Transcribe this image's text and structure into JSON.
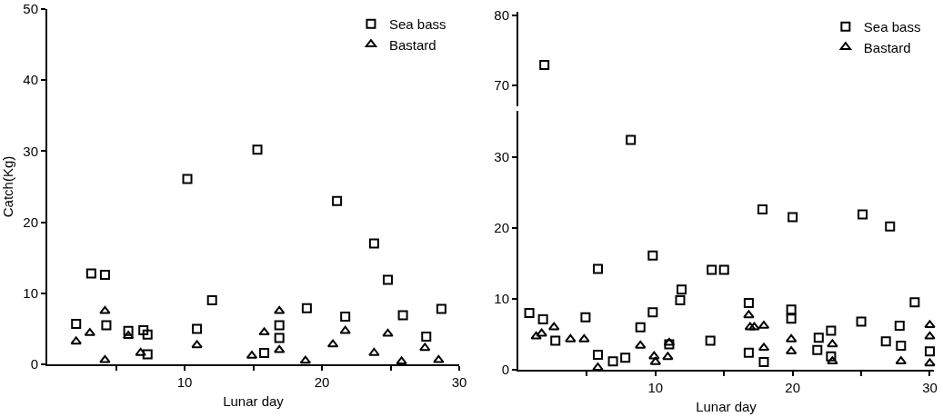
{
  "chart_data": [
    {
      "type": "scatter",
      "xlabel": "Lunar day",
      "ylabel": "Catch(Kg)",
      "xlim": [
        0,
        30
      ],
      "xticks": [
        {
          "value": 5,
          "label": null
        },
        10,
        {
          "value": 15,
          "label": null
        },
        20,
        {
          "value": 25,
          "label": null
        },
        30
      ],
      "ylim": [
        0,
        50
      ],
      "yticks": [
        0,
        10,
        20,
        30,
        40,
        50
      ],
      "grid": false,
      "legend": "top right",
      "series": [
        {
          "name": "Sea bass",
          "marker": "square",
          "color": "#000000",
          "x": [
            2.1,
            3.2,
            4.2,
            4.3,
            5.9,
            7.0,
            7.3,
            7.3,
            10.2,
            10.9,
            12.0,
            15.3,
            15.8,
            16.9,
            16.9,
            18.9,
            21.1,
            21.7,
            23.8,
            24.8,
            25.9,
            27.6,
            28.7
          ],
          "values": [
            5.7,
            12.8,
            12.6,
            5.5,
            4.7,
            4.8,
            4.2,
            1.4,
            26.1,
            5.0,
            9.0,
            30.2,
            1.6,
            5.5,
            3.7,
            7.9,
            23.0,
            6.7,
            17.0,
            11.9,
            6.9,
            3.9,
            7.8
          ]
        },
        {
          "name": "Bastard",
          "marker": "triangle",
          "color": "#000000",
          "x": [
            2.1,
            3.1,
            4.2,
            4.2,
            5.9,
            6.8,
            10.9,
            14.9,
            15.8,
            16.9,
            16.9,
            18.8,
            20.8,
            21.7,
            23.8,
            24.8,
            25.8,
            27.5,
            28.5
          ],
          "values": [
            3.2,
            4.4,
            7.5,
            0.6,
            4.0,
            1.6,
            2.7,
            1.2,
            4.5,
            7.5,
            2.0,
            0.5,
            2.8,
            4.7,
            1.6,
            4.3,
            0.4,
            2.3,
            0.6
          ]
        }
      ]
    },
    {
      "type": "scatter",
      "tick_labels": "y",
      "xlim": [
        0,
        30.3
      ],
      "xticks": [
        {
          "value": 10,
          "label": null
        },
        {
          "value": 20,
          "label": null
        },
        {
          "value": 30,
          "label": null
        }
      ],
      "ylim": [
        67,
        80.5
      ],
      "yticks": [
        70,
        80
      ],
      "grid": false,
      "legend": "top right",
      "series": [
        {
          "name": "Sea bass",
          "marker": "square",
          "color": "#000000",
          "x": [
            1.9
          ],
          "values": [
            72.9
          ]
        },
        {
          "name": "Bastard",
          "marker": "triangle",
          "color": "#000000"
        }
      ]
    },
    {
      "type": "scatter",
      "xlabel": "Lunar day",
      "xlim": [
        0,
        30.3
      ],
      "xticks": [
        {
          "value": 5,
          "label": null
        },
        10,
        {
          "value": 15,
          "label": null
        },
        20,
        {
          "value": 25,
          "label": null
        },
        30
      ],
      "ylim": [
        0,
        36.5
      ],
      "yticks": [
        0,
        10,
        20,
        30
      ],
      "grid": false,
      "series": [
        {
          "marker": "square",
          "color": "#000000",
          "x": [
            0.8,
            1.8,
            2.7,
            4.9,
            5.8,
            5.8,
            6.9,
            7.8,
            8.2,
            8.9,
            9.8,
            9.8,
            11.0,
            11.8,
            11.9,
            14.0,
            14.1,
            15.0,
            16.8,
            16.8,
            17.8,
            17.9,
            19.9,
            19.9,
            20.0,
            21.9,
            21.8,
            22.8,
            22.8,
            25.0,
            25.1,
            26.8,
            27.1,
            27.8,
            27.9,
            28.9,
            30.0
          ],
          "values": [
            8.0,
            7.1,
            4.1,
            7.4,
            14.2,
            2.1,
            1.2,
            1.7,
            32.4,
            6.0,
            16.1,
            8.1,
            3.6,
            9.8,
            11.3,
            4.1,
            14.1,
            14.1,
            9.4,
            2.4,
            22.6,
            1.1,
            8.5,
            7.2,
            21.5,
            4.5,
            2.8,
            5.5,
            1.9,
            6.8,
            21.9,
            4.0,
            20.2,
            6.2,
            3.4,
            9.5,
            2.6
          ]
        },
        {
          "marker": "triangle",
          "color": "#000000",
          "x": [
            1.3,
            1.7,
            2.6,
            3.8,
            4.8,
            5.8,
            8.9,
            9.9,
            10.0,
            10.9,
            11.0,
            16.8,
            16.9,
            17.2,
            17.9,
            17.9,
            19.9,
            19.9,
            22.9,
            22.9,
            27.9,
            30.0,
            30.0,
            30.0
          ],
          "values": [
            4.7,
            5.1,
            6.0,
            4.3,
            4.3,
            0.3,
            3.4,
            1.9,
            1.1,
            1.8,
            3.8,
            7.7,
            6.0,
            6.0,
            6.2,
            3.1,
            4.3,
            2.6,
            3.6,
            1.2,
            1.2,
            6.3,
            4.7,
            0.9
          ]
        }
      ]
    }
  ]
}
